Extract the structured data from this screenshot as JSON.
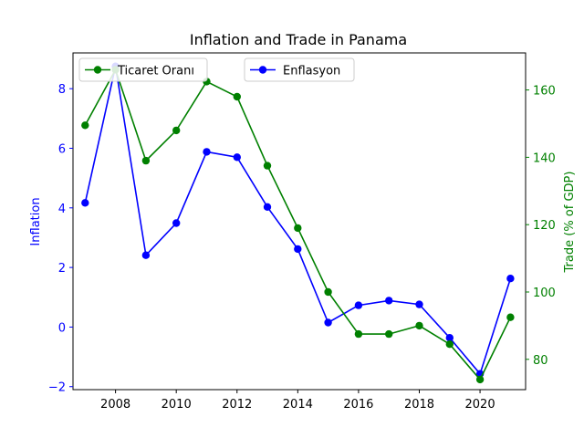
{
  "chart_data": {
    "type": "line",
    "title": "Inflation and Trade in Panama",
    "x": [
      2007,
      2008,
      2009,
      2010,
      2011,
      2012,
      2013,
      2014,
      2015,
      2016,
      2017,
      2018,
      2019,
      2020,
      2021
    ],
    "xlim": [
      2006.6,
      2021.5
    ],
    "xticks": [
      "2008",
      "2010",
      "2012",
      "2014",
      "2016",
      "2018",
      "2020"
    ],
    "axes": {
      "left": {
        "label": "Inflation",
        "color": "#0000ff",
        "ylim": [
          -2.1,
          9.2
        ],
        "ticks": [
          "−2",
          "0",
          "2",
          "4",
          "6",
          "8"
        ]
      },
      "right": {
        "label": "Trade (% of GDP)",
        "color": "#008000",
        "ylim": [
          71,
          171
        ],
        "ticks": [
          "80",
          "100",
          "120",
          "140",
          "160"
        ]
      }
    },
    "series": [
      {
        "name": "Enflasyon",
        "axis": "left",
        "color": "#0000ff",
        "marker": "circle",
        "values": [
          4.17,
          8.75,
          2.41,
          3.49,
          5.88,
          5.7,
          4.03,
          2.62,
          0.15,
          0.73,
          0.89,
          0.76,
          -0.36,
          -1.57,
          1.63
        ]
      },
      {
        "name": "Ticaret Oranı",
        "axis": "right",
        "color": "#008000",
        "marker": "circle",
        "values": [
          149.5,
          166.0,
          139.0,
          148.0,
          162.5,
          158.0,
          137.5,
          119.0,
          100.0,
          87.5,
          87.5,
          90.0,
          84.5,
          74.0,
          92.5
        ]
      }
    ],
    "legends": [
      {
        "series": "Ticaret Oranı",
        "placement": "upper-left"
      },
      {
        "series": "Enflasyon",
        "placement": "upper-center"
      }
    ],
    "grid": false
  }
}
